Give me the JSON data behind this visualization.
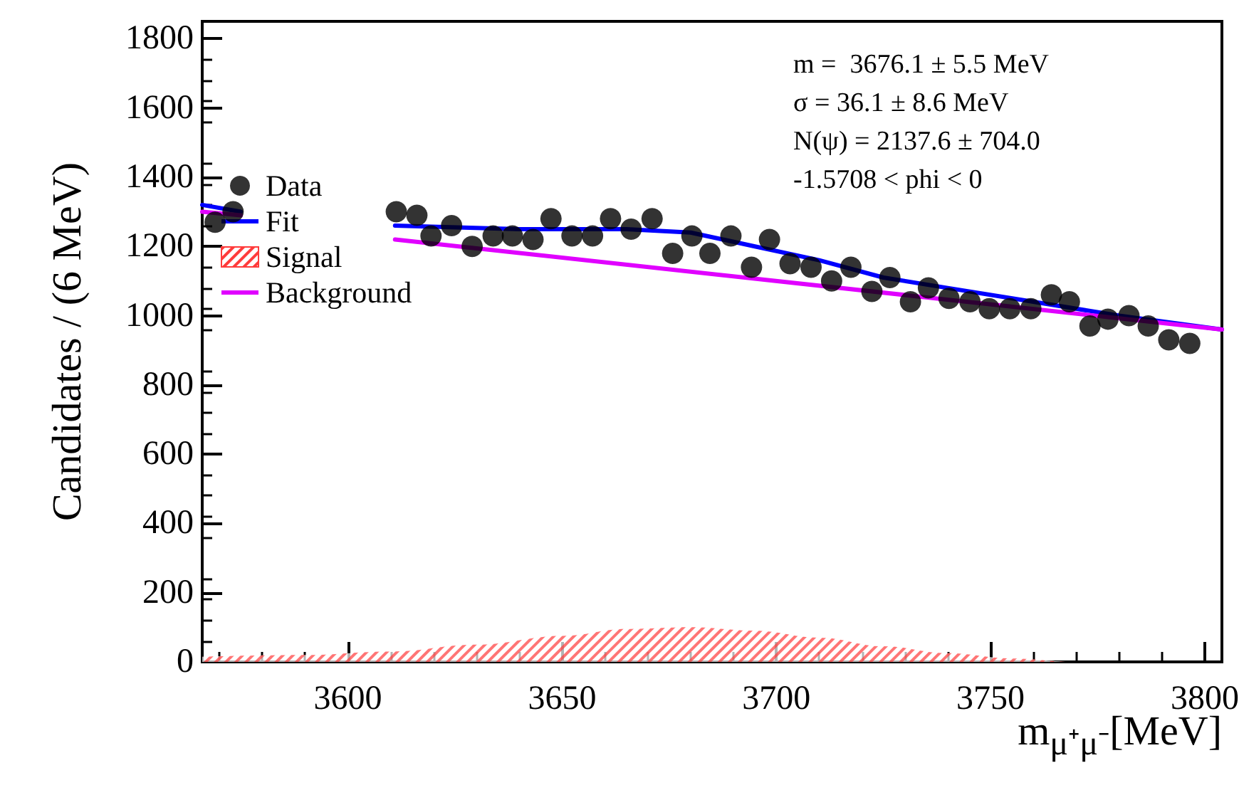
{
  "chart_data": {
    "type": "scatter",
    "xlabel": "m$_{μ⁺μ⁻}$[MeV]",
    "ylabel": "Candidates / (6 MeV)",
    "xlim": [
      3566,
      3804
    ],
    "ylim": [
      0,
      1850
    ],
    "xticks": [
      3600,
      3650,
      3700,
      3750,
      3800
    ],
    "yticks": [
      0,
      200,
      400,
      600,
      800,
      1000,
      1200,
      1400,
      1600,
      1800
    ],
    "grid": false,
    "legend": "top left",
    "marker": "circle",
    "annotations": [
      "m =  3676.1 ± 5.5 MeV",
      "σ = 36.1 ± 8.6 MeV",
      "N(ψ) = 2137.6 ± 704.0",
      "-1.5708 < phi < 0"
    ],
    "series": [
      {
        "name": "Data",
        "color": "#000000",
        "x": [
          3569.0,
          3573.2,
          3611.3,
          3616.1,
          3619.4,
          3624.2,
          3629.0,
          3633.9,
          3638.4,
          3643.2,
          3647.4,
          3652.3,
          3657.1,
          3661.3,
          3666.1,
          3671.0,
          3675.8,
          3680.3,
          3684.5,
          3689.4,
          3694.2,
          3698.4,
          3703.2,
          3708.1,
          3712.9,
          3717.4,
          3722.3,
          3726.5,
          3731.3,
          3735.5,
          3740.3,
          3745.2,
          3749.7,
          3754.5,
          3759.4,
          3764.2,
          3768.4,
          3773.2,
          3777.4,
          3782.3,
          3786.8,
          3791.6,
          3796.5
        ],
        "values": [
          1270,
          1300,
          1300,
          1290,
          1230,
          1260,
          1200,
          1230,
          1230,
          1220,
          1280,
          1230,
          1230,
          1280,
          1250,
          1280,
          1180,
          1230,
          1180,
          1230,
          1140,
          1220,
          1150,
          1140,
          1100,
          1140,
          1070,
          1110,
          1040,
          1080,
          1050,
          1040,
          1020,
          1020,
          1020,
          1060,
          1040,
          970,
          990,
          1000,
          970,
          930,
          920
        ]
      },
      {
        "name": "Fit",
        "type": "line",
        "marker": "none",
        "line_style": "solid",
        "color": "#0000ff",
        "x": [
          3566,
          3575,
          3593,
          3611,
          3640,
          3665,
          3680,
          3695,
          3710,
          3725,
          3740,
          3760,
          3780,
          3804
        ],
        "values": [
          1320,
          1300,
          null,
          1260,
          1250,
          1250,
          1240,
          1200,
          1160,
          1110,
          1080,
          1040,
          1000,
          960
        ]
      },
      {
        "name": "Signal",
        "type": "area",
        "marker": "none",
        "color": "#ff3b3b",
        "x": [
          3566,
          3590,
          3610,
          3630,
          3650,
          3665,
          3680,
          3695,
          3710,
          3725,
          3740,
          3755,
          3770,
          3804
        ],
        "values": [
          15,
          20,
          30,
          50,
          75,
          95,
          100,
          90,
          70,
          45,
          25,
          10,
          0,
          0
        ]
      },
      {
        "name": "Background",
        "type": "line",
        "marker": "none",
        "line_style": "solid",
        "color": "#e000ff",
        "x": [
          3566,
          3575,
          3593,
          3611,
          3804
        ],
        "values": [
          1300,
          1290,
          null,
          1220,
          960
        ]
      }
    ]
  }
}
